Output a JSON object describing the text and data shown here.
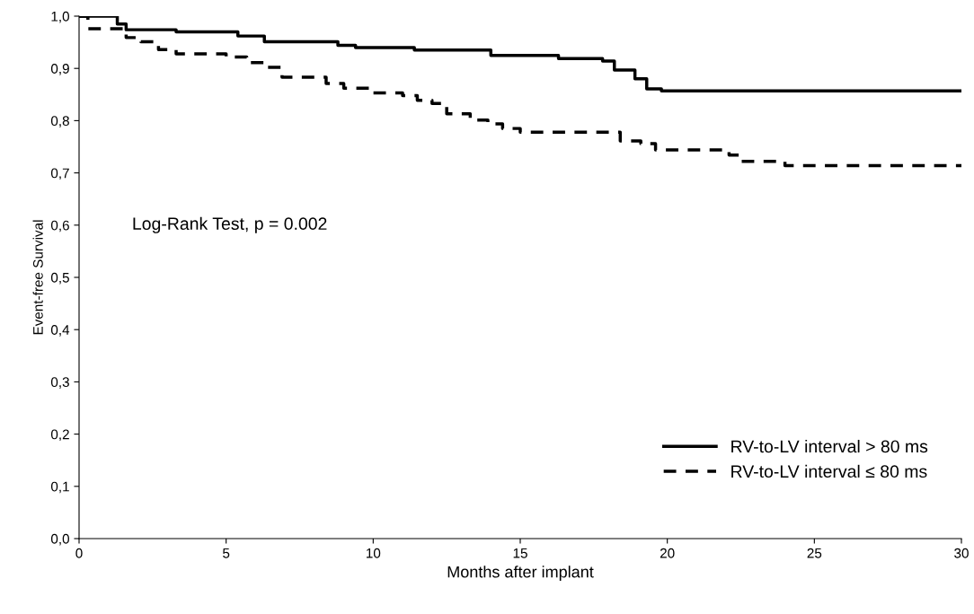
{
  "chart_data": {
    "type": "step",
    "xlabel": "Months after implant",
    "ylabel": "Event-free Survival",
    "annotations": [
      "Log-Rank Test, p = 0.002"
    ],
    "xlim": [
      0,
      30
    ],
    "xticks": [
      0,
      5,
      10,
      15,
      20,
      25,
      30
    ],
    "ylim": [
      0,
      1
    ],
    "yticks": [
      {
        "value": 0,
        "label": "0,0"
      },
      {
        "value": 0.1,
        "label": "0,1"
      },
      {
        "value": 0.2,
        "label": "0,2"
      },
      {
        "value": 0.3,
        "label": "0,3"
      },
      {
        "value": 0.4,
        "label": "0,4"
      },
      {
        "value": 0.5,
        "label": "0,5"
      },
      {
        "value": 0.6,
        "label": "0,6"
      },
      {
        "value": 0.7,
        "label": "0,7"
      },
      {
        "value": 0.8,
        "label": "0,8"
      },
      {
        "value": 0.9,
        "label": "0,9"
      },
      {
        "value": 1,
        "label": "1,0"
      }
    ],
    "grid": false,
    "legend": "bottom right",
    "series": [
      {
        "name": "RV-to-LV interval > 80 ms",
        "color": "#000000",
        "line_style": "solid",
        "x": [
          0,
          1.3,
          1.6,
          3.3,
          5.4,
          6.3,
          8.8,
          9.4,
          11.4,
          14.0,
          16.3,
          17.8,
          18.2,
          18.9,
          19.3,
          19.8,
          30
        ],
        "values": [
          1.0,
          0.985,
          0.974,
          0.97,
          0.962,
          0.951,
          0.944,
          0.94,
          0.935,
          0.925,
          0.919,
          0.914,
          0.897,
          0.88,
          0.861,
          0.857,
          0.857
        ]
      },
      {
        "name": "RV-to-LV interval ≤ 80 ms",
        "color": "#000000",
        "line_style": "dashed",
        "x": [
          0,
          0.3,
          1.6,
          2.1,
          2.7,
          3.3,
          5.0,
          5.7,
          6.4,
          6.9,
          8.4,
          9.0,
          10.0,
          11.0,
          11.5,
          12.0,
          12.5,
          13.3,
          13.9,
          14.4,
          15.0,
          18.4,
          19.1,
          19.6,
          22.1,
          22.5,
          24.0,
          30
        ],
        "values": [
          1.0,
          0.976,
          0.959,
          0.951,
          0.936,
          0.928,
          0.922,
          0.911,
          0.902,
          0.883,
          0.871,
          0.862,
          0.853,
          0.848,
          0.839,
          0.833,
          0.813,
          0.801,
          0.794,
          0.785,
          0.778,
          0.761,
          0.756,
          0.744,
          0.734,
          0.722,
          0.714,
          0.714
        ]
      }
    ]
  }
}
